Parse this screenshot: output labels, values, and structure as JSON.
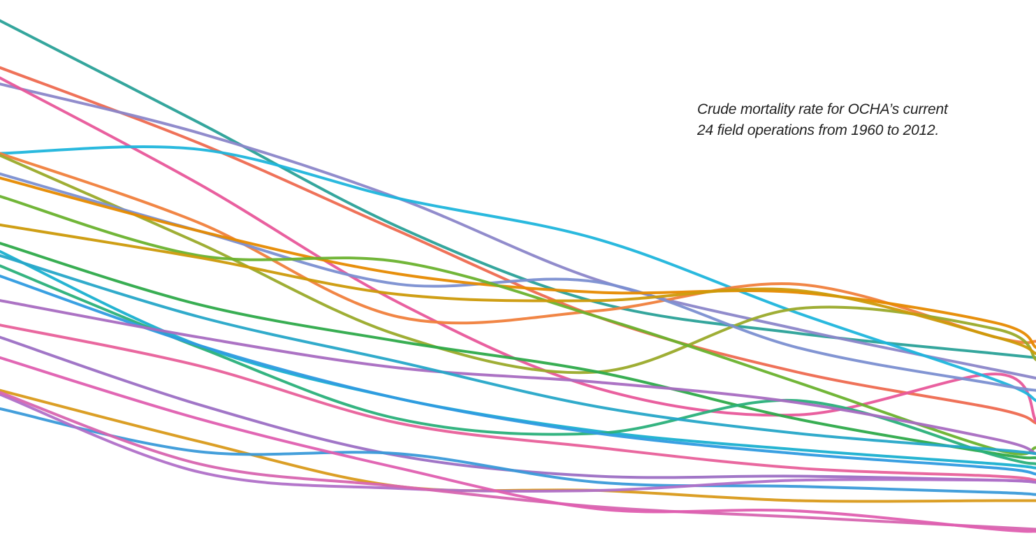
{
  "caption": {
    "line1": "Crude mortality rate for OCHA’s current",
    "line2": "24 field operations from 1960 to 2012."
  },
  "chart_data": {
    "type": "line",
    "title": "",
    "x": [
      1960,
      1970,
      1980,
      1990,
      2000,
      2010,
      2012
    ],
    "xlim": [
      1960,
      2012
    ],
    "ylim": [
      0,
      26
    ],
    "axes_visible": false,
    "grid": false,
    "legend": "none",
    "series": [
      {
        "color": "#2aa198",
        "values": [
          25.5,
          20.5,
          15.4,
          11.7,
          10.2,
          9.2,
          9.0
        ]
      },
      {
        "color": "#ee6a50",
        "values": [
          23.2,
          19.5,
          15.2,
          11.0,
          8.3,
          6.5,
          5.8
        ]
      },
      {
        "color": "#8b86c9",
        "values": [
          22.4,
          20.0,
          16.8,
          12.8,
          10.4,
          8.4,
          8.0
        ]
      },
      {
        "color": "#e8579a",
        "values": [
          22.7,
          17.5,
          11.7,
          7.5,
          6.2,
          8.2,
          5.9
        ]
      },
      {
        "color": "#1fb5dc",
        "values": [
          19.0,
          19.2,
          16.8,
          14.8,
          11.2,
          7.9,
          6.9
        ]
      },
      {
        "color": "#f07f3c",
        "values": [
          19.0,
          15.6,
          11.0,
          11.3,
          12.6,
          10.0,
          9.8
        ]
      },
      {
        "color": "#9aaa2a",
        "values": [
          18.9,
          14.6,
          10.1,
          8.3,
          11.4,
          10.4,
          8.9
        ]
      },
      {
        "color": "#7b8fd1",
        "values": [
          18.0,
          15.2,
          12.6,
          12.7,
          9.5,
          7.7,
          7.4
        ]
      },
      {
        "color": "#e68a00",
        "values": [
          17.8,
          15.2,
          13.1,
          12.2,
          12.2,
          10.7,
          9.5
        ]
      },
      {
        "color": "#6ab22e",
        "values": [
          16.9,
          14.0,
          13.7,
          11.0,
          7.8,
          4.5,
          4.6
        ]
      },
      {
        "color": "#cc9a0a",
        "values": [
          15.5,
          13.9,
          12.1,
          11.8,
          12.3,
          10.0,
          9.2
        ]
      },
      {
        "color": "#2eaa4a",
        "values": [
          14.6,
          11.6,
          9.8,
          8.3,
          6.0,
          4.3,
          4.1
        ]
      },
      {
        "color": "#1ab0d0",
        "values": [
          14.2,
          9.6,
          7.0,
          5.4,
          4.5,
          3.8,
          3.6
        ]
      },
      {
        "color": "#2ab07a",
        "values": [
          13.5,
          9.5,
          6.0,
          5.3,
          6.9,
          4.2,
          3.8
        ]
      },
      {
        "color": "#2f9be0",
        "values": [
          13.0,
          9.6,
          7.0,
          5.3,
          4.3,
          3.6,
          3.3
        ]
      },
      {
        "color": "#a86cc1",
        "values": [
          11.8,
          10.0,
          8.5,
          7.8,
          6.8,
          5.0,
          4.3
        ]
      },
      {
        "color": "#e8609a",
        "values": [
          10.6,
          8.6,
          5.8,
          4.6,
          3.6,
          3.2,
          3.0
        ]
      },
      {
        "color": "#9c6fc4",
        "values": [
          10.0,
          6.7,
          4.2,
          3.2,
          3.2,
          3.0,
          2.9
        ]
      },
      {
        "color": "#d99a1a",
        "values": [
          7.4,
          4.9,
          2.7,
          2.5,
          2.0,
          2.0,
          2.0
        ]
      },
      {
        "color": "#3a9ad9",
        "values": [
          6.5,
          4.4,
          4.3,
          2.9,
          2.7,
          2.4,
          2.3
        ]
      },
      {
        "color": "#b070c8",
        "values": [
          7.2,
          3.4,
          2.6,
          2.5,
          3.0,
          3.0,
          2.9
        ]
      },
      {
        "color": "#d765b0",
        "values": [
          7.3,
          3.8,
          2.7,
          1.7,
          1.2,
          0.7,
          0.6
        ]
      },
      {
        "color": "#df5fb0",
        "values": [
          9.0,
          6.0,
          3.6,
          1.6,
          1.5,
          0.6,
          0.5
        ]
      },
      {
        "color": "#26a6c8",
        "values": [
          14.0,
          11.0,
          8.8,
          6.6,
          5.3,
          4.5,
          4.3
        ]
      }
    ]
  }
}
